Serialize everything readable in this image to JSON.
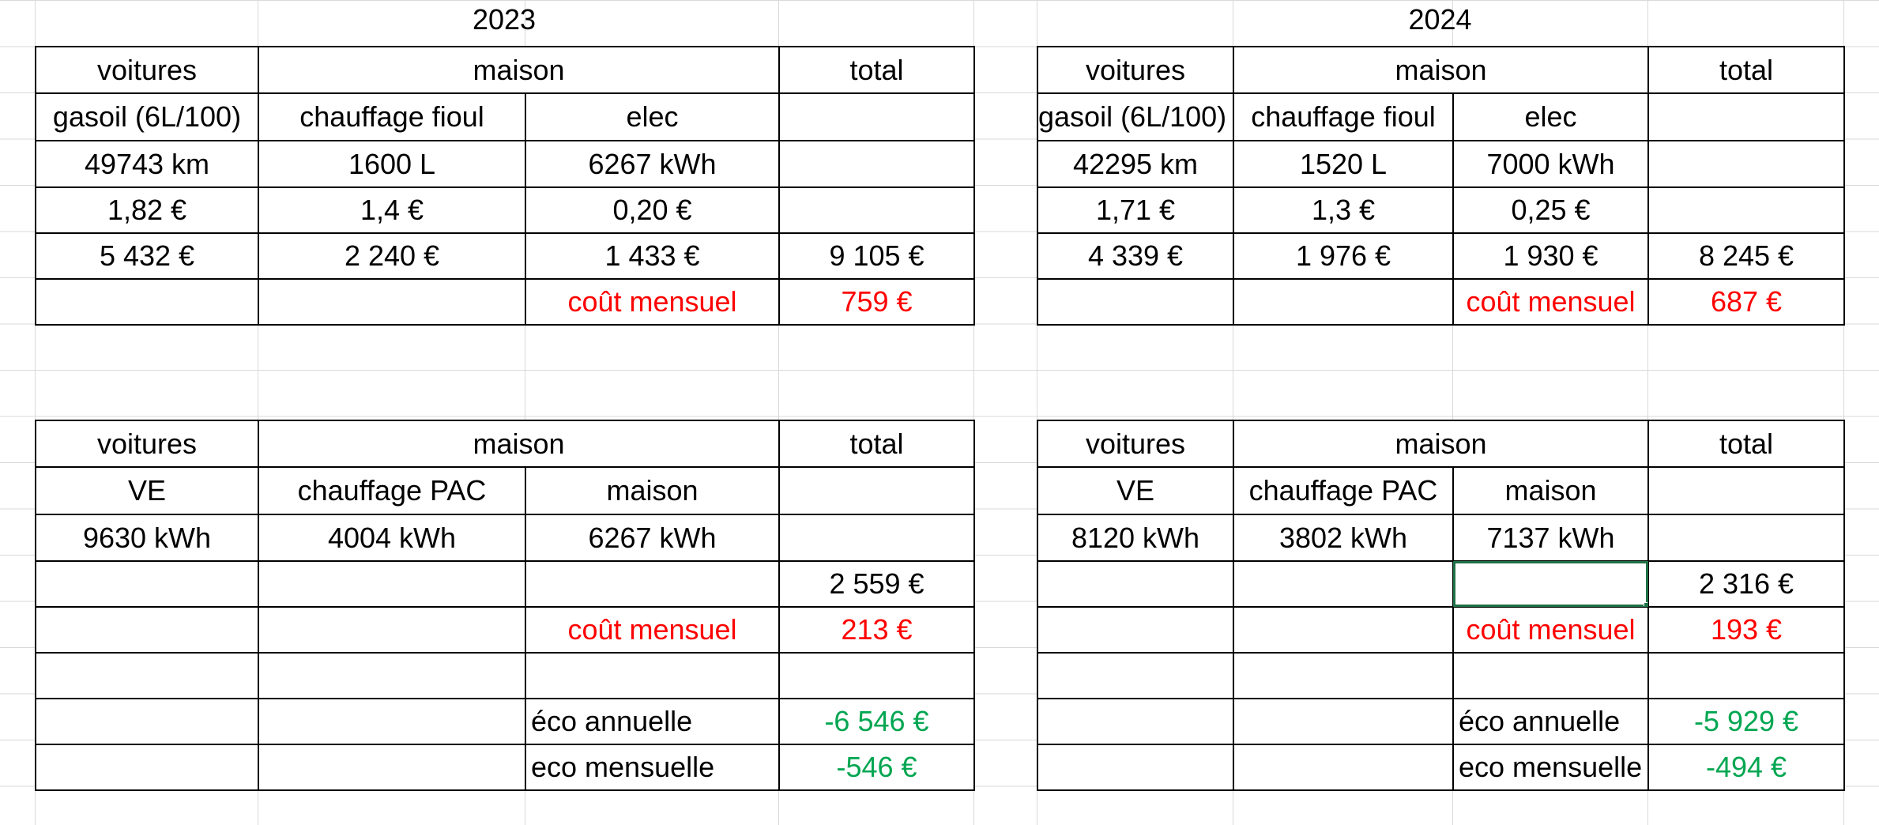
{
  "years": {
    "left": "2023",
    "right": "2024"
  },
  "headers": {
    "voitures": "voitures",
    "maison": "maison",
    "total": "total"
  },
  "top_subheaders": {
    "gasoil": "gasoil (6L/100)",
    "fioul": "chauffage fioul",
    "elec": "elec"
  },
  "bottom_subheaders": {
    "ve": "VE",
    "pac": "chauffage PAC",
    "maison": "maison"
  },
  "labels": {
    "cout_mensuel": "coût mensuel",
    "eco_annuelle": "éco annuelle",
    "eco_mensuelle": "eco mensuelle"
  },
  "t2023": {
    "qty": [
      "49743 km",
      "1600 L",
      "6267 kWh"
    ],
    "price": [
      "1,82 €",
      "1,4 €",
      "0,20 €"
    ],
    "cost": [
      "5 432 €",
      "2 240 €",
      "1 433 €",
      "9 105 €"
    ],
    "monthly": "759 €"
  },
  "t2024": {
    "qty": [
      "42295 km",
      "1520 L",
      "7000 kWh"
    ],
    "price": [
      "1,71 €",
      "1,3 €",
      "0,25 €"
    ],
    "cost": [
      "4 339 €",
      "1 976 €",
      "1 930 €",
      "8 245 €"
    ],
    "monthly": "687 €"
  },
  "b2023": {
    "qty": [
      "9630 kWh",
      "4004 kWh",
      "6267 kWh"
    ],
    "total": "2 559 €",
    "monthly": "213 €",
    "eco_annual": "-6 546 €",
    "eco_monthly": "-546 €"
  },
  "b2024": {
    "qty": [
      "8120 kWh",
      "3802 kWh",
      "7137 kWh"
    ],
    "total": "2 316 €",
    "monthly": "193 €",
    "eco_annual": "-5 929 €",
    "eco_monthly": "-494 €"
  },
  "colors": {
    "accent_red": "#ff0000",
    "accent_green": "#00a651",
    "selection": "#1e7145"
  }
}
